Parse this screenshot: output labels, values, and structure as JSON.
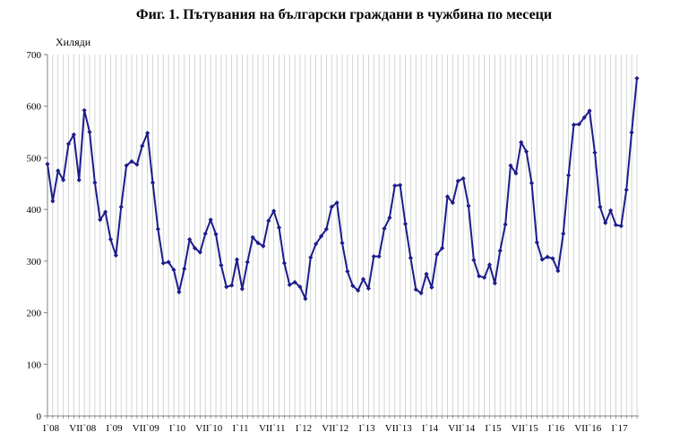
{
  "chart_data": {
    "type": "line",
    "title": "Фиг. 1. Пътувания на български граждани в чужбина по месеци",
    "ylabel": "Хиляди",
    "xlabel": "",
    "ylim": [
      0,
      700
    ],
    "yticks": [
      0,
      100,
      200,
      300,
      400,
      500,
      600,
      700
    ],
    "grid": "vertical",
    "legend": "none",
    "colors": {
      "line": "#1c1c8c",
      "grid": "#c8c8c8",
      "axis": "#808080"
    },
    "xtick_labels": [
      {
        "index": 0,
        "label": "I`08"
      },
      {
        "index": 6,
        "label": "VII`08"
      },
      {
        "index": 12,
        "label": "I`09"
      },
      {
        "index": 18,
        "label": "VII`09"
      },
      {
        "index": 24,
        "label": "I`10"
      },
      {
        "index": 30,
        "label": "VII`10"
      },
      {
        "index": 36,
        "label": "I`11"
      },
      {
        "index": 42,
        "label": "VII`11"
      },
      {
        "index": 48,
        "label": "I`12"
      },
      {
        "index": 54,
        "label": "VII`12"
      },
      {
        "index": 60,
        "label": "I`13"
      },
      {
        "index": 66,
        "label": "VII`13"
      },
      {
        "index": 72,
        "label": "I`14"
      },
      {
        "index": 78,
        "label": "VII`14"
      },
      {
        "index": 84,
        "label": "I`15"
      },
      {
        "index": 90,
        "label": "VII`15"
      },
      {
        "index": 96,
        "label": "I`16"
      },
      {
        "index": 102,
        "label": "VII`16"
      },
      {
        "index": 108,
        "label": "I`17"
      }
    ],
    "series": [
      {
        "values": [
          488,
          416,
          475,
          457,
          527,
          545,
          457,
          592,
          550,
          452,
          380,
          395,
          342,
          311,
          405,
          485,
          493,
          487,
          523,
          548,
          452,
          362,
          296,
          298,
          283,
          240,
          285,
          342,
          325,
          317,
          353,
          380,
          352,
          292,
          250,
          253,
          303,
          246,
          298,
          346,
          335,
          329,
          378,
          397,
          365,
          296,
          254,
          259,
          250,
          227,
          307,
          333,
          348,
          362,
          405,
          413,
          335,
          280,
          252,
          243,
          265,
          247,
          309,
          309,
          363,
          384,
          446,
          447,
          372,
          306,
          245,
          238,
          275,
          249,
          313,
          325,
          425,
          413,
          455,
          460,
          407,
          302,
          271,
          268,
          293,
          257,
          320,
          371,
          485,
          470,
          530,
          512,
          451,
          336,
          303,
          308,
          305,
          281,
          353,
          466,
          564,
          565,
          578,
          591,
          510,
          405,
          374,
          398,
          370,
          368,
          438,
          549,
          654
        ]
      }
    ]
  }
}
